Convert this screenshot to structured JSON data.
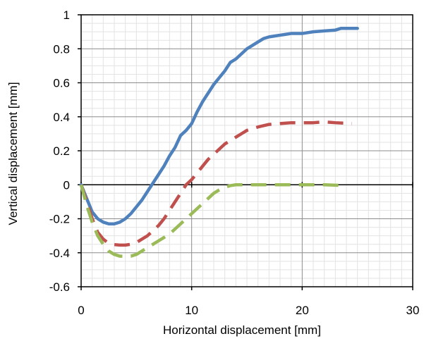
{
  "chart_data": {
    "type": "line",
    "title": "",
    "xlabel": "Horizontal displacement [mm]",
    "ylabel": "Vertical displacement [mm]",
    "xlim": [
      0,
      30
    ],
    "ylim": [
      -0.6,
      1.0
    ],
    "x_ticks": [
      0,
      10,
      20,
      30
    ],
    "x_tick_labels": [
      "0",
      "10",
      "20",
      "30"
    ],
    "y_ticks": [
      -0.6,
      -0.4,
      -0.2,
      0,
      0.2,
      0.4,
      0.6,
      0.8,
      1.0
    ],
    "y_tick_labels": [
      "-0.6",
      "-0.4",
      "-0.2",
      "0",
      "0.2",
      "0.4",
      "0.6",
      "0.8",
      "1"
    ],
    "grid": true,
    "legend": "none",
    "series": [
      {
        "color": "#4F81BD",
        "style": "solid",
        "points": [
          [
            0,
            0
          ],
          [
            0.5,
            -0.08
          ],
          [
            1,
            -0.16
          ],
          [
            1.5,
            -0.2
          ],
          [
            2,
            -0.22
          ],
          [
            2.5,
            -0.23
          ],
          [
            3,
            -0.23
          ],
          [
            3.5,
            -0.22
          ],
          [
            4,
            -0.2
          ],
          [
            4.5,
            -0.17
          ],
          [
            5,
            -0.13
          ],
          [
            5.5,
            -0.09
          ],
          [
            6,
            -0.04
          ],
          [
            6.5,
            0.01
          ],
          [
            7,
            0.06
          ],
          [
            7.5,
            0.11
          ],
          [
            8,
            0.17
          ],
          [
            8.5,
            0.22
          ],
          [
            9,
            0.29
          ],
          [
            9.5,
            0.32
          ],
          [
            10,
            0.36
          ],
          [
            10.5,
            0.43
          ],
          [
            11,
            0.49
          ],
          [
            11.5,
            0.54
          ],
          [
            12,
            0.59
          ],
          [
            12.5,
            0.63
          ],
          [
            13,
            0.67
          ],
          [
            13.5,
            0.72
          ],
          [
            14,
            0.74
          ],
          [
            14.5,
            0.77
          ],
          [
            15,
            0.8
          ],
          [
            15.5,
            0.82
          ],
          [
            16,
            0.84
          ],
          [
            16.5,
            0.86
          ],
          [
            17,
            0.87
          ],
          [
            17.5,
            0.875
          ],
          [
            18,
            0.88
          ],
          [
            18.5,
            0.885
          ],
          [
            19,
            0.89
          ],
          [
            20,
            0.89
          ],
          [
            20.5,
            0.895
          ],
          [
            21,
            0.9
          ],
          [
            22,
            0.905
          ],
          [
            23,
            0.91
          ],
          [
            23.5,
            0.92
          ],
          [
            25,
            0.92
          ]
        ]
      },
      {
        "color": "#C0504D",
        "style": "dashed",
        "points": [
          [
            0,
            0
          ],
          [
            0.5,
            -0.1
          ],
          [
            1,
            -0.2
          ],
          [
            1.5,
            -0.28
          ],
          [
            2,
            -0.32
          ],
          [
            2.5,
            -0.345
          ],
          [
            3,
            -0.352
          ],
          [
            3.5,
            -0.355
          ],
          [
            4,
            -0.355
          ],
          [
            4.5,
            -0.35
          ],
          [
            5,
            -0.34
          ],
          [
            5.5,
            -0.32
          ],
          [
            6,
            -0.3
          ],
          [
            6.5,
            -0.27
          ],
          [
            7,
            -0.24
          ],
          [
            7.5,
            -0.2
          ],
          [
            8,
            -0.15
          ],
          [
            8.5,
            -0.1
          ],
          [
            9,
            -0.05
          ],
          [
            9.5,
            0
          ],
          [
            10,
            0.03
          ],
          [
            10.5,
            0.07
          ],
          [
            11,
            0.11
          ],
          [
            11.5,
            0.15
          ],
          [
            12,
            0.18
          ],
          [
            12.5,
            0.21
          ],
          [
            13,
            0.24
          ],
          [
            13.5,
            0.26
          ],
          [
            14,
            0.28
          ],
          [
            14.5,
            0.3
          ],
          [
            15,
            0.32
          ],
          [
            16,
            0.34
          ],
          [
            17,
            0.355
          ],
          [
            18,
            0.36
          ],
          [
            19,
            0.365
          ],
          [
            20,
            0.365
          ],
          [
            21,
            0.365
          ],
          [
            22,
            0.37
          ],
          [
            23,
            0.365
          ],
          [
            24.5,
            0.36
          ]
        ]
      },
      {
        "color": "#9BBB59",
        "style": "dashed",
        "points": [
          [
            0,
            0
          ],
          [
            0.5,
            -0.12
          ],
          [
            1,
            -0.22
          ],
          [
            1.5,
            -0.3
          ],
          [
            2,
            -0.35
          ],
          [
            2.5,
            -0.39
          ],
          [
            3,
            -0.41
          ],
          [
            3.5,
            -0.42
          ],
          [
            4,
            -0.42
          ],
          [
            4.5,
            -0.42
          ],
          [
            5,
            -0.41
          ],
          [
            5.5,
            -0.39
          ],
          [
            6,
            -0.37
          ],
          [
            6.5,
            -0.35
          ],
          [
            7,
            -0.33
          ],
          [
            7.5,
            -0.31
          ],
          [
            8,
            -0.29
          ],
          [
            8.5,
            -0.26
          ],
          [
            9,
            -0.23
          ],
          [
            9.5,
            -0.2
          ],
          [
            10,
            -0.17
          ],
          [
            10.5,
            -0.14
          ],
          [
            11,
            -0.11
          ],
          [
            11.5,
            -0.08
          ],
          [
            12,
            -0.05
          ],
          [
            12.5,
            -0.03
          ],
          [
            13,
            -0.015
          ],
          [
            13.5,
            -0.005
          ],
          [
            14,
            0
          ],
          [
            16,
            0
          ],
          [
            18,
            0
          ],
          [
            20,
            0
          ],
          [
            22,
            0
          ],
          [
            24,
            -0.005
          ]
        ]
      }
    ]
  }
}
